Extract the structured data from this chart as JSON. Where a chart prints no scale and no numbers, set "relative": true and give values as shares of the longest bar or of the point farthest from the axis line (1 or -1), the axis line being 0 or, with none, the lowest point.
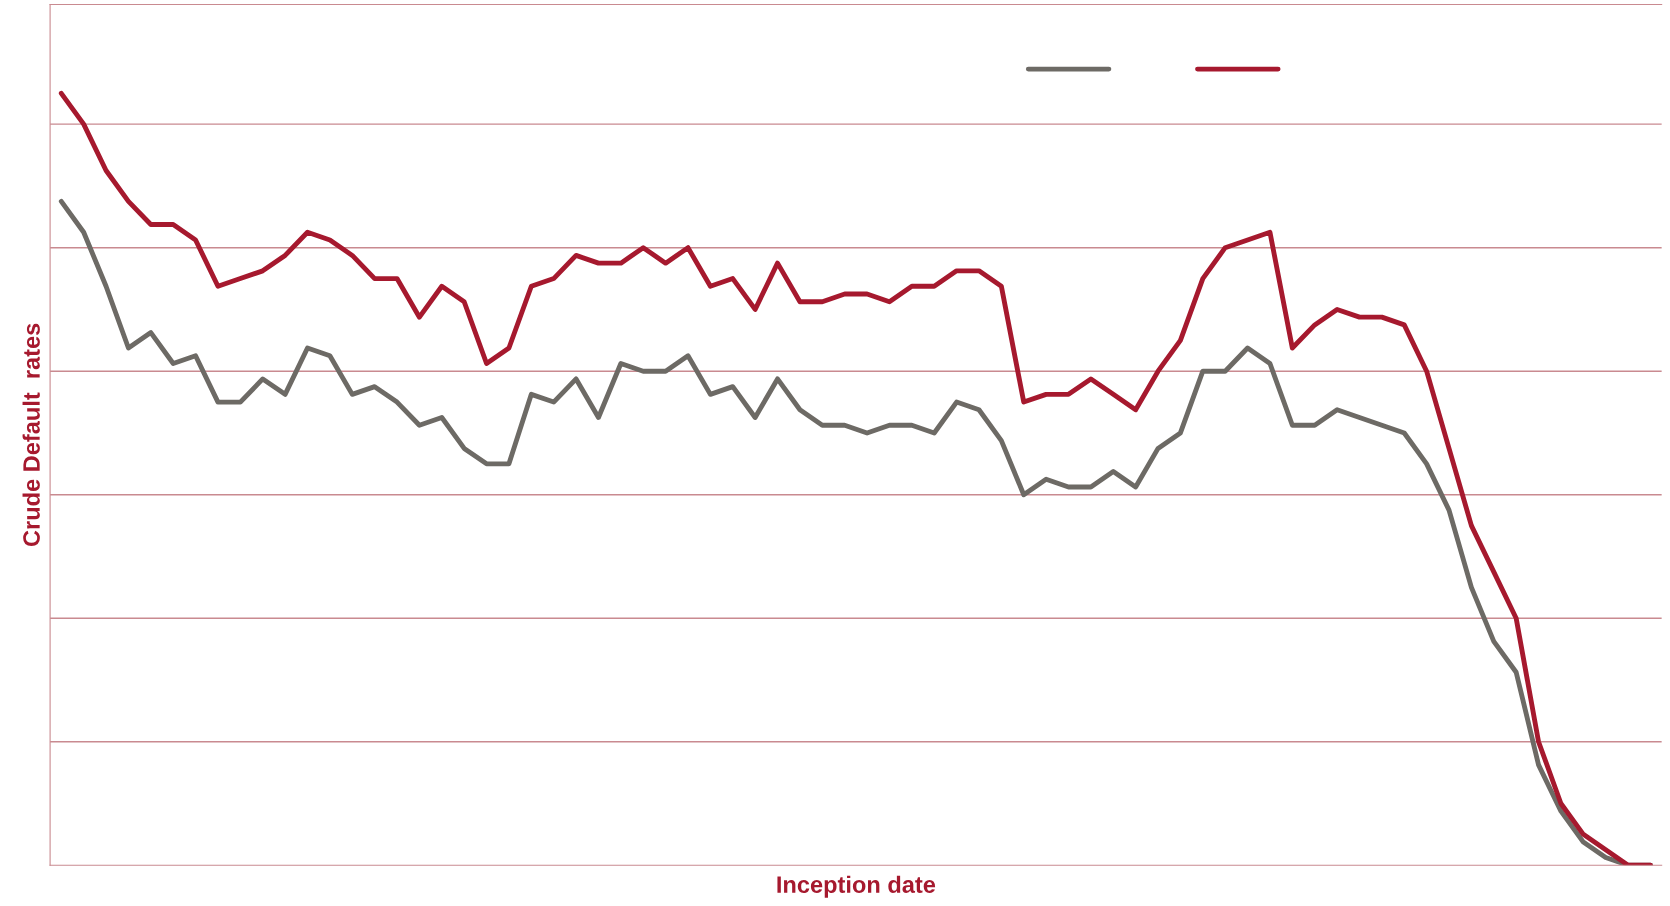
{
  "chart_data": {
    "type": "line",
    "relative": true,
    "xlabel": "Inception date",
    "ylabel": "Crude Default  rates",
    "ref_lines": [
      {
        "axis": "y",
        "value": 0.16,
        "color": "#c98a90"
      },
      {
        "axis": "y",
        "value": 0.32,
        "color": "#c98a90"
      },
      {
        "axis": "y",
        "value": 0.48,
        "color": "#c98a90"
      },
      {
        "axis": "y",
        "value": 0.64,
        "color": "#c98a90"
      },
      {
        "axis": "y",
        "value": 0.8,
        "color": "#c98a90"
      },
      {
        "axis": "y",
        "value": 0.96,
        "color": "#c98a90"
      }
    ],
    "categories": [
      null,
      null,
      null,
      null,
      null,
      null,
      null,
      null,
      null,
      null,
      null,
      null,
      null,
      null,
      null,
      null,
      null,
      null,
      null,
      null,
      null,
      null,
      null,
      null,
      null,
      null,
      null,
      null,
      null,
      null,
      null,
      null,
      null,
      null,
      null,
      null,
      null,
      null,
      null,
      null,
      null,
      null,
      null,
      null,
      null,
      null,
      null,
      null,
      null,
      null,
      null,
      null,
      null,
      null,
      null,
      null,
      null,
      null,
      null,
      null,
      null,
      null,
      null,
      null,
      null,
      null,
      null,
      null,
      null,
      null,
      null,
      null
    ],
    "series": [
      {
        "color": "#6d6a65",
        "values": [
          0.86,
          0.82,
          0.75,
          0.67,
          0.69,
          0.65,
          0.66,
          0.6,
          0.6,
          0.63,
          0.61,
          0.67,
          0.66,
          0.61,
          0.62,
          0.6,
          0.57,
          0.58,
          0.54,
          0.52,
          0.52,
          0.61,
          0.6,
          0.63,
          0.58,
          0.65,
          0.64,
          0.64,
          0.66,
          0.61,
          0.62,
          0.58,
          0.63,
          0.59,
          0.57,
          0.57,
          0.56,
          0.57,
          0.57,
          0.56,
          0.6,
          0.59,
          0.55,
          0.48,
          0.5,
          0.49,
          0.49,
          0.51,
          0.49,
          0.54,
          0.56,
          0.64,
          0.64,
          0.67,
          0.65,
          0.57,
          0.57,
          0.59,
          0.58,
          0.57,
          0.56,
          0.52,
          0.46,
          0.36,
          0.29,
          0.25,
          0.13,
          0.07,
          0.03,
          0.01,
          0,
          0
        ]
      },
      {
        "color": "#a6192e",
        "values": [
          1.0,
          0.96,
          0.9,
          0.86,
          0.83,
          0.83,
          0.81,
          0.75,
          0.76,
          0.77,
          0.79,
          0.82,
          0.81,
          0.79,
          0.76,
          0.76,
          0.71,
          0.75,
          0.73,
          0.65,
          0.67,
          0.75,
          0.76,
          0.79,
          0.78,
          0.78,
          0.8,
          0.78,
          0.8,
          0.75,
          0.76,
          0.72,
          0.78,
          0.73,
          0.73,
          0.74,
          0.74,
          0.73,
          0.75,
          0.75,
          0.77,
          0.77,
          0.75,
          0.6,
          0.61,
          0.61,
          0.63,
          0.61,
          0.59,
          0.64,
          0.68,
          0.76,
          0.8,
          0.81,
          0.82,
          0.67,
          0.7,
          0.72,
          0.71,
          0.71,
          0.7,
          0.64,
          0.54,
          0.44,
          0.38,
          0.32,
          0.16,
          0.08,
          0.04,
          0.02,
          0,
          0
        ]
      }
    ]
  }
}
